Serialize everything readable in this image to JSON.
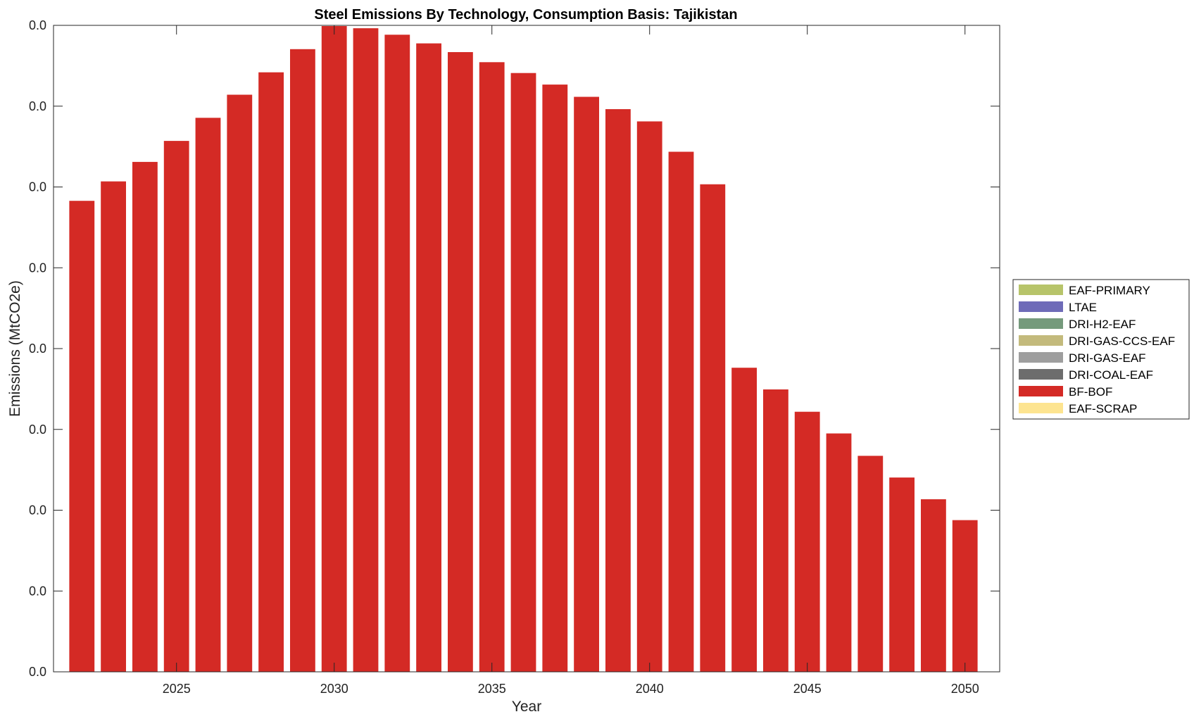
{
  "chart_data": {
    "type": "bar",
    "stacked": true,
    "title": "Steel Emissions By Technology, Consumption Basis: Tajikistan",
    "xlabel": "Year",
    "ylabel": "Emissions (MtCO2e)",
    "x": [
      2022,
      2023,
      2024,
      2025,
      2026,
      2027,
      2028,
      2029,
      2030,
      2031,
      2032,
      2033,
      2034,
      2035,
      2036,
      2037,
      2038,
      2039,
      2040,
      2041,
      2042,
      2043,
      2044,
      2045,
      2046,
      2047,
      2048,
      2049,
      2050
    ],
    "x_ticks": [
      2025,
      2030,
      2035,
      2040,
      2045,
      2050
    ],
    "xlim": [
      2021.1,
      2051.1
    ],
    "y_tick_labels": [
      "0.0",
      "0.0",
      "0.0",
      "0.0",
      "0.0",
      "0.0",
      "0.0",
      "0.0",
      "0.0"
    ],
    "ylim": [
      0,
      8.95
    ],
    "grid": false,
    "legend_position": "right",
    "series": [
      {
        "name": "EAF-PRIMARY",
        "color": "#b7c46a",
        "values": [
          0,
          0,
          0,
          0,
          0,
          0,
          0,
          0,
          0,
          0,
          0,
          0,
          0,
          0,
          0,
          0,
          0,
          0,
          0,
          0,
          0,
          0,
          0,
          0,
          0,
          0,
          0,
          0,
          0
        ]
      },
      {
        "name": "LTAE",
        "color": "#6e6bb8",
        "values": [
          0,
          0,
          0,
          0,
          0,
          0,
          0,
          0,
          0,
          0,
          0,
          0,
          0,
          0,
          0,
          0,
          0,
          0,
          0,
          0,
          0,
          0,
          0,
          0,
          0,
          0,
          0,
          0,
          0
        ]
      },
      {
        "name": "DRI-H2-EAF",
        "color": "#759a7c",
        "values": [
          0,
          0,
          0,
          0,
          0,
          0,
          0,
          0,
          0,
          0,
          0,
          0,
          0,
          0,
          0,
          0,
          0,
          0,
          0,
          0,
          0,
          0,
          0,
          0,
          0,
          0,
          0,
          0,
          0
        ]
      },
      {
        "name": "DRI-GAS-CCS-EAF",
        "color": "#c3ba7c",
        "values": [
          0,
          0,
          0,
          0,
          0,
          0,
          0,
          0,
          0,
          0,
          0,
          0,
          0,
          0,
          0,
          0,
          0,
          0,
          0,
          0,
          0,
          0,
          0,
          0,
          0,
          0,
          0,
          0,
          0
        ]
      },
      {
        "name": "DRI-GAS-EAF",
        "color": "#9e9e9e",
        "values": [
          0,
          0,
          0,
          0,
          0,
          0,
          0,
          0,
          0,
          0,
          0,
          0,
          0,
          0,
          0,
          0,
          0,
          0,
          0,
          0,
          0,
          0,
          0,
          0,
          0,
          0,
          0,
          0,
          0
        ]
      },
      {
        "name": "DRI-COAL-EAF",
        "color": "#6d6d6d",
        "values": [
          0,
          0,
          0,
          0,
          0,
          0,
          0,
          0,
          0,
          0,
          0,
          0,
          0,
          0,
          0,
          0,
          0,
          0,
          0,
          0,
          0,
          0,
          0,
          0,
          0,
          0,
          0,
          0,
          0
        ]
      },
      {
        "name": "BF-BOF",
        "color": "#d42a25",
        "values": [
          6.52,
          6.79,
          7.06,
          7.35,
          7.67,
          7.99,
          8.3,
          8.62,
          8.94,
          8.91,
          8.82,
          8.7,
          8.58,
          8.44,
          8.29,
          8.13,
          7.96,
          7.79,
          7.62,
          7.2,
          6.75,
          4.21,
          3.91,
          3.6,
          3.3,
          2.99,
          2.69,
          2.39,
          2.1
        ]
      },
      {
        "name": "EAF-SCRAP",
        "color": "#fde490",
        "values": [
          0,
          0,
          0,
          0,
          0,
          0,
          0,
          0,
          0,
          0,
          0,
          0,
          0,
          0,
          0,
          0,
          0,
          0,
          0,
          0,
          0,
          0,
          0,
          0,
          0,
          0,
          0,
          0,
          0
        ]
      }
    ]
  }
}
